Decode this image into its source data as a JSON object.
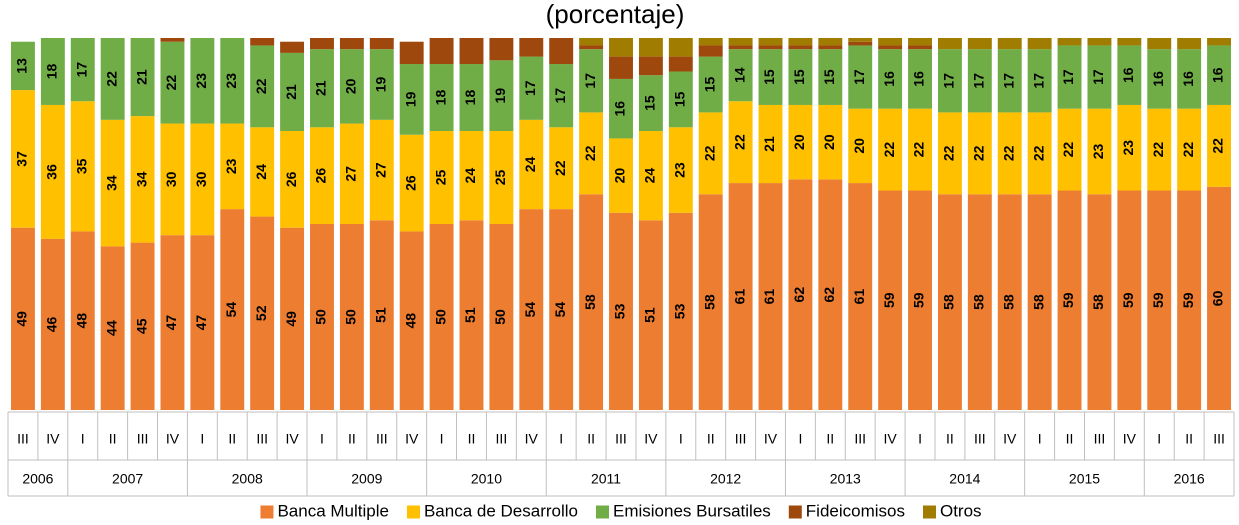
{
  "chart_data": {
    "type": "stacked_bar",
    "title": "(porcentaje)",
    "groups": [
      {
        "label": "2006",
        "categories": [
          "III",
          "IV"
        ]
      },
      {
        "label": "2007",
        "categories": [
          "I",
          "II",
          "III",
          "IV"
        ]
      },
      {
        "label": "2008",
        "categories": [
          "I",
          "II",
          "III",
          "IV"
        ]
      },
      {
        "label": "2009",
        "categories": [
          "I",
          "II",
          "III",
          "IV"
        ]
      },
      {
        "label": "2010",
        "categories": [
          "I",
          "II",
          "III",
          "IV"
        ]
      },
      {
        "label": "2011",
        "categories": [
          "I",
          "II",
          "III",
          "IV"
        ]
      },
      {
        "label": "2012",
        "categories": [
          "I",
          "II",
          "III",
          "IV"
        ]
      },
      {
        "label": "2013",
        "categories": [
          "I",
          "II",
          "III",
          "IV"
        ]
      },
      {
        "label": "2014",
        "categories": [
          "I",
          "II",
          "III",
          "IV"
        ]
      },
      {
        "label": "2015",
        "categories": [
          "I",
          "II",
          "III",
          "IV"
        ]
      },
      {
        "label": "2016",
        "categories": [
          "I",
          "II",
          "III"
        ]
      }
    ],
    "ylim": [
      0,
      100
    ],
    "series": [
      {
        "name": "Banca Multiple",
        "color": "#ed7d31",
        "show_labels": true,
        "values": [
          49,
          46,
          48,
          44,
          45,
          47,
          47,
          54,
          52,
          49,
          50,
          50,
          51,
          48,
          50,
          51,
          50,
          54,
          54,
          58,
          53,
          51,
          53,
          58,
          61,
          61,
          62,
          62,
          61,
          59,
          59,
          58,
          58,
          58,
          58,
          59,
          58,
          59,
          59,
          59,
          60
        ]
      },
      {
        "name": "Banca de Desarrollo",
        "color": "#ffc000",
        "show_labels": true,
        "values": [
          37,
          36,
          35,
          34,
          34,
          30,
          30,
          23,
          24,
          26,
          26,
          27,
          27,
          26,
          25,
          24,
          25,
          24,
          22,
          22,
          20,
          24,
          23,
          22,
          22,
          21,
          20,
          20,
          20,
          22,
          22,
          22,
          22,
          22,
          22,
          22,
          23,
          23,
          22,
          22,
          22
        ]
      },
      {
        "name": "Emisiones Bursatiles",
        "color": "#70ad47",
        "show_labels": true,
        "values": [
          13,
          18,
          17,
          22,
          21,
          22,
          23,
          23,
          22,
          21,
          21,
          20,
          19,
          19,
          18,
          18,
          19,
          17,
          17,
          17,
          16,
          15,
          15,
          15,
          14,
          15,
          15,
          15,
          17,
          16,
          16,
          17,
          17,
          17,
          17,
          17,
          17,
          16,
          16,
          16,
          16
        ]
      },
      {
        "name": "Fideicomisos",
        "color": "#9e480e",
        "show_labels": false,
        "values": [
          0,
          0,
          0,
          0,
          0,
          1,
          0,
          0,
          2,
          3,
          3,
          3,
          3,
          6,
          7,
          7,
          6,
          5,
          7,
          1,
          6,
          5,
          4,
          3,
          1,
          1,
          1,
          1,
          1,
          1,
          1,
          0,
          0,
          0,
          0,
          0,
          0,
          0,
          0,
          0,
          0
        ]
      },
      {
        "name": "Otros",
        "color": "#a07c00",
        "show_labels": false,
        "values": [
          0,
          0,
          0,
          0,
          0,
          0,
          0,
          0,
          0,
          0,
          0,
          0,
          0,
          0,
          0,
          0,
          0,
          0,
          0,
          2,
          5,
          5,
          5,
          2,
          2,
          2,
          2,
          2,
          1,
          2,
          2,
          3,
          3,
          3,
          3,
          2,
          2,
          2,
          3,
          3,
          2
        ]
      }
    ],
    "legend": "bottom"
  }
}
